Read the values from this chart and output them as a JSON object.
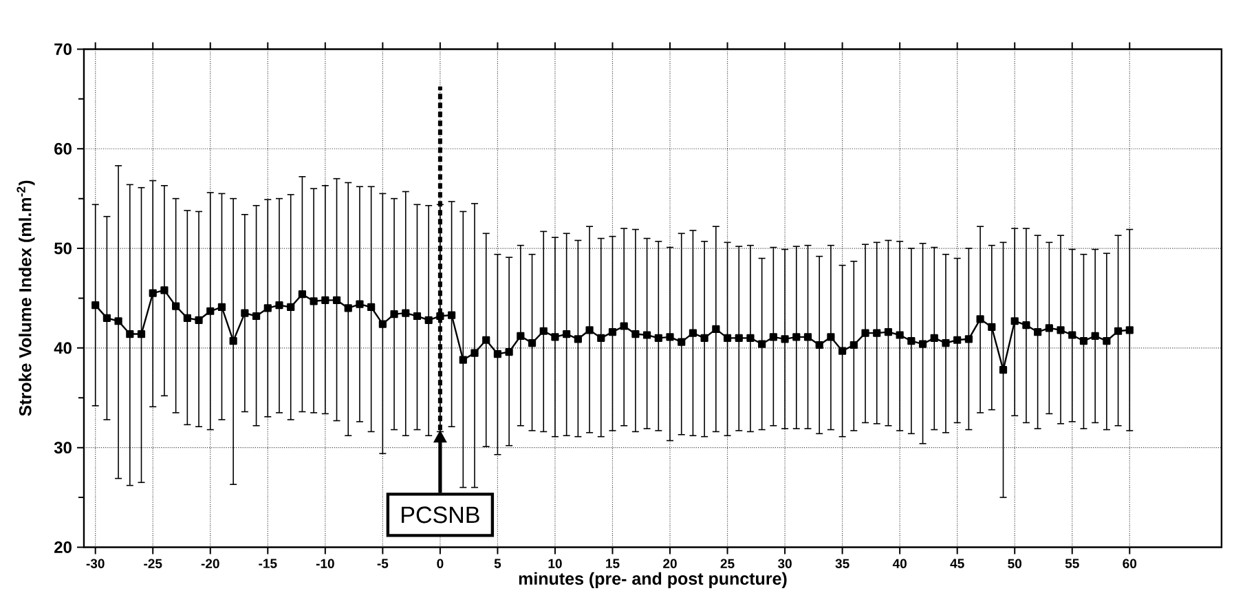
{
  "chart_data": {
    "type": "line",
    "xlabel": "minutes (pre- and post puncture)",
    "ylabel": "Stroke Volume Index (ml.m$^{-2}$)",
    "x": [
      -30,
      -29,
      -28,
      -27,
      -26,
      -25,
      -24,
      -23,
      -22,
      -21,
      -20,
      -19,
      -18,
      -17,
      -16,
      -15,
      -14,
      -13,
      -12,
      -11,
      -10,
      -9,
      -8,
      -7,
      -6,
      -5,
      -4,
      -3,
      -2,
      -1,
      0,
      1,
      2,
      3,
      4,
      5,
      6,
      7,
      8,
      9,
      10,
      11,
      12,
      13,
      14,
      15,
      16,
      17,
      18,
      19,
      20,
      21,
      22,
      23,
      24,
      25,
      26,
      27,
      28,
      29,
      30,
      31,
      32,
      33,
      34,
      35,
      36,
      37,
      38,
      39,
      40,
      41,
      42,
      43,
      44,
      45,
      46,
      47,
      48,
      49,
      50,
      51,
      52,
      53,
      54,
      55,
      56,
      57,
      58,
      59,
      60
    ],
    "values": [
      44.3,
      43.0,
      42.7,
      41.4,
      41.4,
      45.5,
      45.8,
      44.2,
      43.0,
      42.8,
      43.7,
      44.1,
      40.7,
      43.5,
      43.2,
      44.0,
      44.3,
      44.1,
      45.4,
      44.7,
      44.8,
      44.8,
      44.0,
      44.4,
      44.1,
      42.4,
      43.4,
      43.5,
      43.2,
      42.8,
      43.2,
      43.3,
      38.8,
      39.5,
      40.8,
      39.4,
      39.6,
      41.2,
      40.5,
      41.7,
      41.1,
      41.4,
      40.9,
      41.8,
      41.0,
      41.6,
      42.2,
      41.4,
      41.3,
      41.0,
      41.1,
      40.6,
      41.5,
      41.0,
      41.9,
      41.0,
      41.0,
      41.0,
      40.4,
      41.1,
      40.9,
      41.1,
      41.1,
      40.3,
      41.1,
      39.7,
      40.3,
      41.5,
      41.5,
      41.6,
      41.3,
      40.7,
      40.4,
      41.0,
      40.5,
      40.8,
      40.9,
      42.9,
      42.1,
      37.8,
      42.7,
      42.3,
      41.6,
      42.0,
      41.8,
      41.3,
      40.7,
      41.2,
      40.7,
      41.7,
      41.8
    ],
    "errors": [
      [
        34.2,
        54.4
      ],
      [
        32.8,
        53.2
      ],
      [
        26.9,
        58.3
      ],
      [
        26.2,
        56.4
      ],
      [
        26.5,
        56.1
      ],
      [
        34.1,
        56.8
      ],
      [
        35.2,
        56.3
      ],
      [
        33.5,
        55.0
      ],
      [
        32.3,
        53.8
      ],
      [
        32.1,
        53.7
      ],
      [
        31.8,
        55.6
      ],
      [
        32.8,
        55.5
      ],
      [
        26.3,
        55.0
      ],
      [
        33.6,
        53.4
      ],
      [
        32.2,
        54.3
      ],
      [
        33.1,
        54.9
      ],
      [
        33.5,
        55.0
      ],
      [
        32.8,
        55.4
      ],
      [
        33.6,
        57.2
      ],
      [
        33.5,
        56.0
      ],
      [
        33.4,
        56.3
      ],
      [
        32.7,
        57.0
      ],
      [
        31.2,
        56.6
      ],
      [
        32.6,
        56.2
      ],
      [
        31.6,
        56.2
      ],
      [
        29.4,
        55.5
      ],
      [
        31.8,
        55.0
      ],
      [
        31.2,
        55.7
      ],
      [
        31.8,
        54.4
      ],
      [
        31.2,
        54.3
      ],
      [
        31.6,
        54.4
      ],
      [
        32.1,
        54.7
      ],
      [
        26.0,
        53.7
      ],
      [
        26.0,
        54.5
      ],
      [
        30.1,
        51.5
      ],
      [
        29.3,
        49.4
      ],
      [
        30.2,
        49.1
      ],
      [
        32.2,
        50.3
      ],
      [
        31.7,
        49.4
      ],
      [
        31.6,
        51.7
      ],
      [
        31.1,
        51.1
      ],
      [
        31.2,
        51.5
      ],
      [
        31.1,
        50.8
      ],
      [
        31.5,
        52.2
      ],
      [
        31.1,
        51.0
      ],
      [
        31.7,
        51.2
      ],
      [
        32.2,
        52.0
      ],
      [
        31.6,
        51.9
      ],
      [
        31.9,
        51.0
      ],
      [
        31.7,
        50.7
      ],
      [
        30.7,
        50.1
      ],
      [
        31.3,
        51.5
      ],
      [
        31.2,
        51.8
      ],
      [
        31.1,
        50.7
      ],
      [
        31.6,
        52.2
      ],
      [
        31.2,
        50.6
      ],
      [
        31.7,
        50.2
      ],
      [
        31.6,
        50.3
      ],
      [
        31.8,
        49.0
      ],
      [
        32.2,
        50.1
      ],
      [
        31.9,
        49.9
      ],
      [
        31.9,
        50.2
      ],
      [
        31.9,
        50.3
      ],
      [
        31.4,
        49.2
      ],
      [
        31.8,
        50.3
      ],
      [
        31.1,
        48.3
      ],
      [
        31.7,
        48.7
      ],
      [
        32.5,
        50.4
      ],
      [
        32.4,
        50.6
      ],
      [
        32.2,
        50.8
      ],
      [
        31.7,
        50.7
      ],
      [
        31.4,
        50.0
      ],
      [
        30.4,
        50.5
      ],
      [
        31.8,
        50.1
      ],
      [
        31.5,
        49.4
      ],
      [
        32.5,
        49.0
      ],
      [
        31.8,
        50.0
      ],
      [
        33.5,
        52.2
      ],
      [
        33.8,
        50.3
      ],
      [
        25.0,
        50.6
      ],
      [
        33.2,
        52.0
      ],
      [
        32.5,
        52.0
      ],
      [
        31.9,
        51.3
      ],
      [
        33.4,
        50.6
      ],
      [
        32.4,
        51.3
      ],
      [
        32.6,
        49.9
      ],
      [
        31.9,
        49.4
      ],
      [
        32.5,
        49.9
      ],
      [
        31.8,
        49.5
      ],
      [
        32.2,
        51.3
      ],
      [
        31.7,
        51.9
      ]
    ],
    "color": "#000000",
    "marker": "square",
    "line_style": "solid",
    "grid": true,
    "xlim": [
      -31,
      68
    ],
    "ylim": [
      20,
      70
    ],
    "xticks": [
      -30,
      -25,
      -20,
      -15,
      -10,
      -5,
      0,
      5,
      10,
      15,
      20,
      25,
      30,
      35,
      40,
      45,
      50,
      55,
      60
    ],
    "yticks": [
      20,
      {
        "value": 25,
        "label": null
      },
      30,
      {
        "value": 35,
        "label": null
      },
      40,
      {
        "value": 45,
        "label": null
      },
      50,
      {
        "value": 55,
        "label": null
      },
      60,
      {
        "value": 65,
        "label": null
      },
      70
    ],
    "ref_lines": [
      {
        "axis": "x",
        "value": 0,
        "label": "PCSNB",
        "line_style": "dashed"
      }
    ]
  }
}
